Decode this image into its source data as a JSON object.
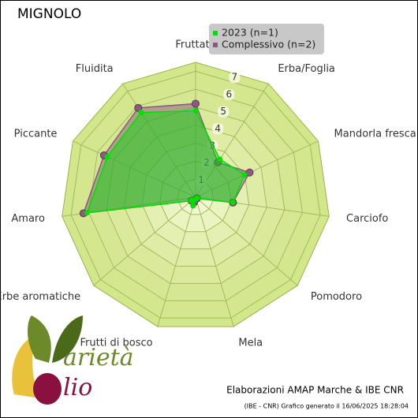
{
  "chart_data": {
    "type": "radar",
    "title": "MIGNOLO",
    "categories": [
      "Fruttato",
      "Erba/Foglia",
      "Mandorla fresca",
      "Carciofo",
      "Pomodoro",
      "Mela",
      "Frutti di bosco",
      "Erbe aromatiche",
      "Amaro",
      "Piccante",
      "Fluidita"
    ],
    "series": [
      {
        "name": "2023 (n=1)",
        "color": "#00e000",
        "values": [
          4.8,
          2.5,
          3.0,
          2.1,
          0.1,
          0.1,
          0.5,
          0.3,
          6.1,
          5.4,
          5.6
        ]
      },
      {
        "name": "Complessivo (n=2)",
        "color": "#8a5a80",
        "values": [
          5.2,
          2.3,
          3.3,
          2.1,
          0.1,
          0.1,
          0.3,
          0.3,
          6.3,
          5.6,
          5.9
        ]
      }
    ],
    "ylim": [
      0,
      7.5
    ],
    "yticks": [
      1,
      2,
      3,
      4,
      5,
      6,
      7
    ],
    "grid": true,
    "footer": "Elaborazioni AMAP Marche & IBE CNR",
    "footnote": "(IBE - CNR) Grafico generato il 16/06/2025 18:28:04",
    "logo": {
      "word1": "arietà",
      "word2": "lio"
    }
  }
}
